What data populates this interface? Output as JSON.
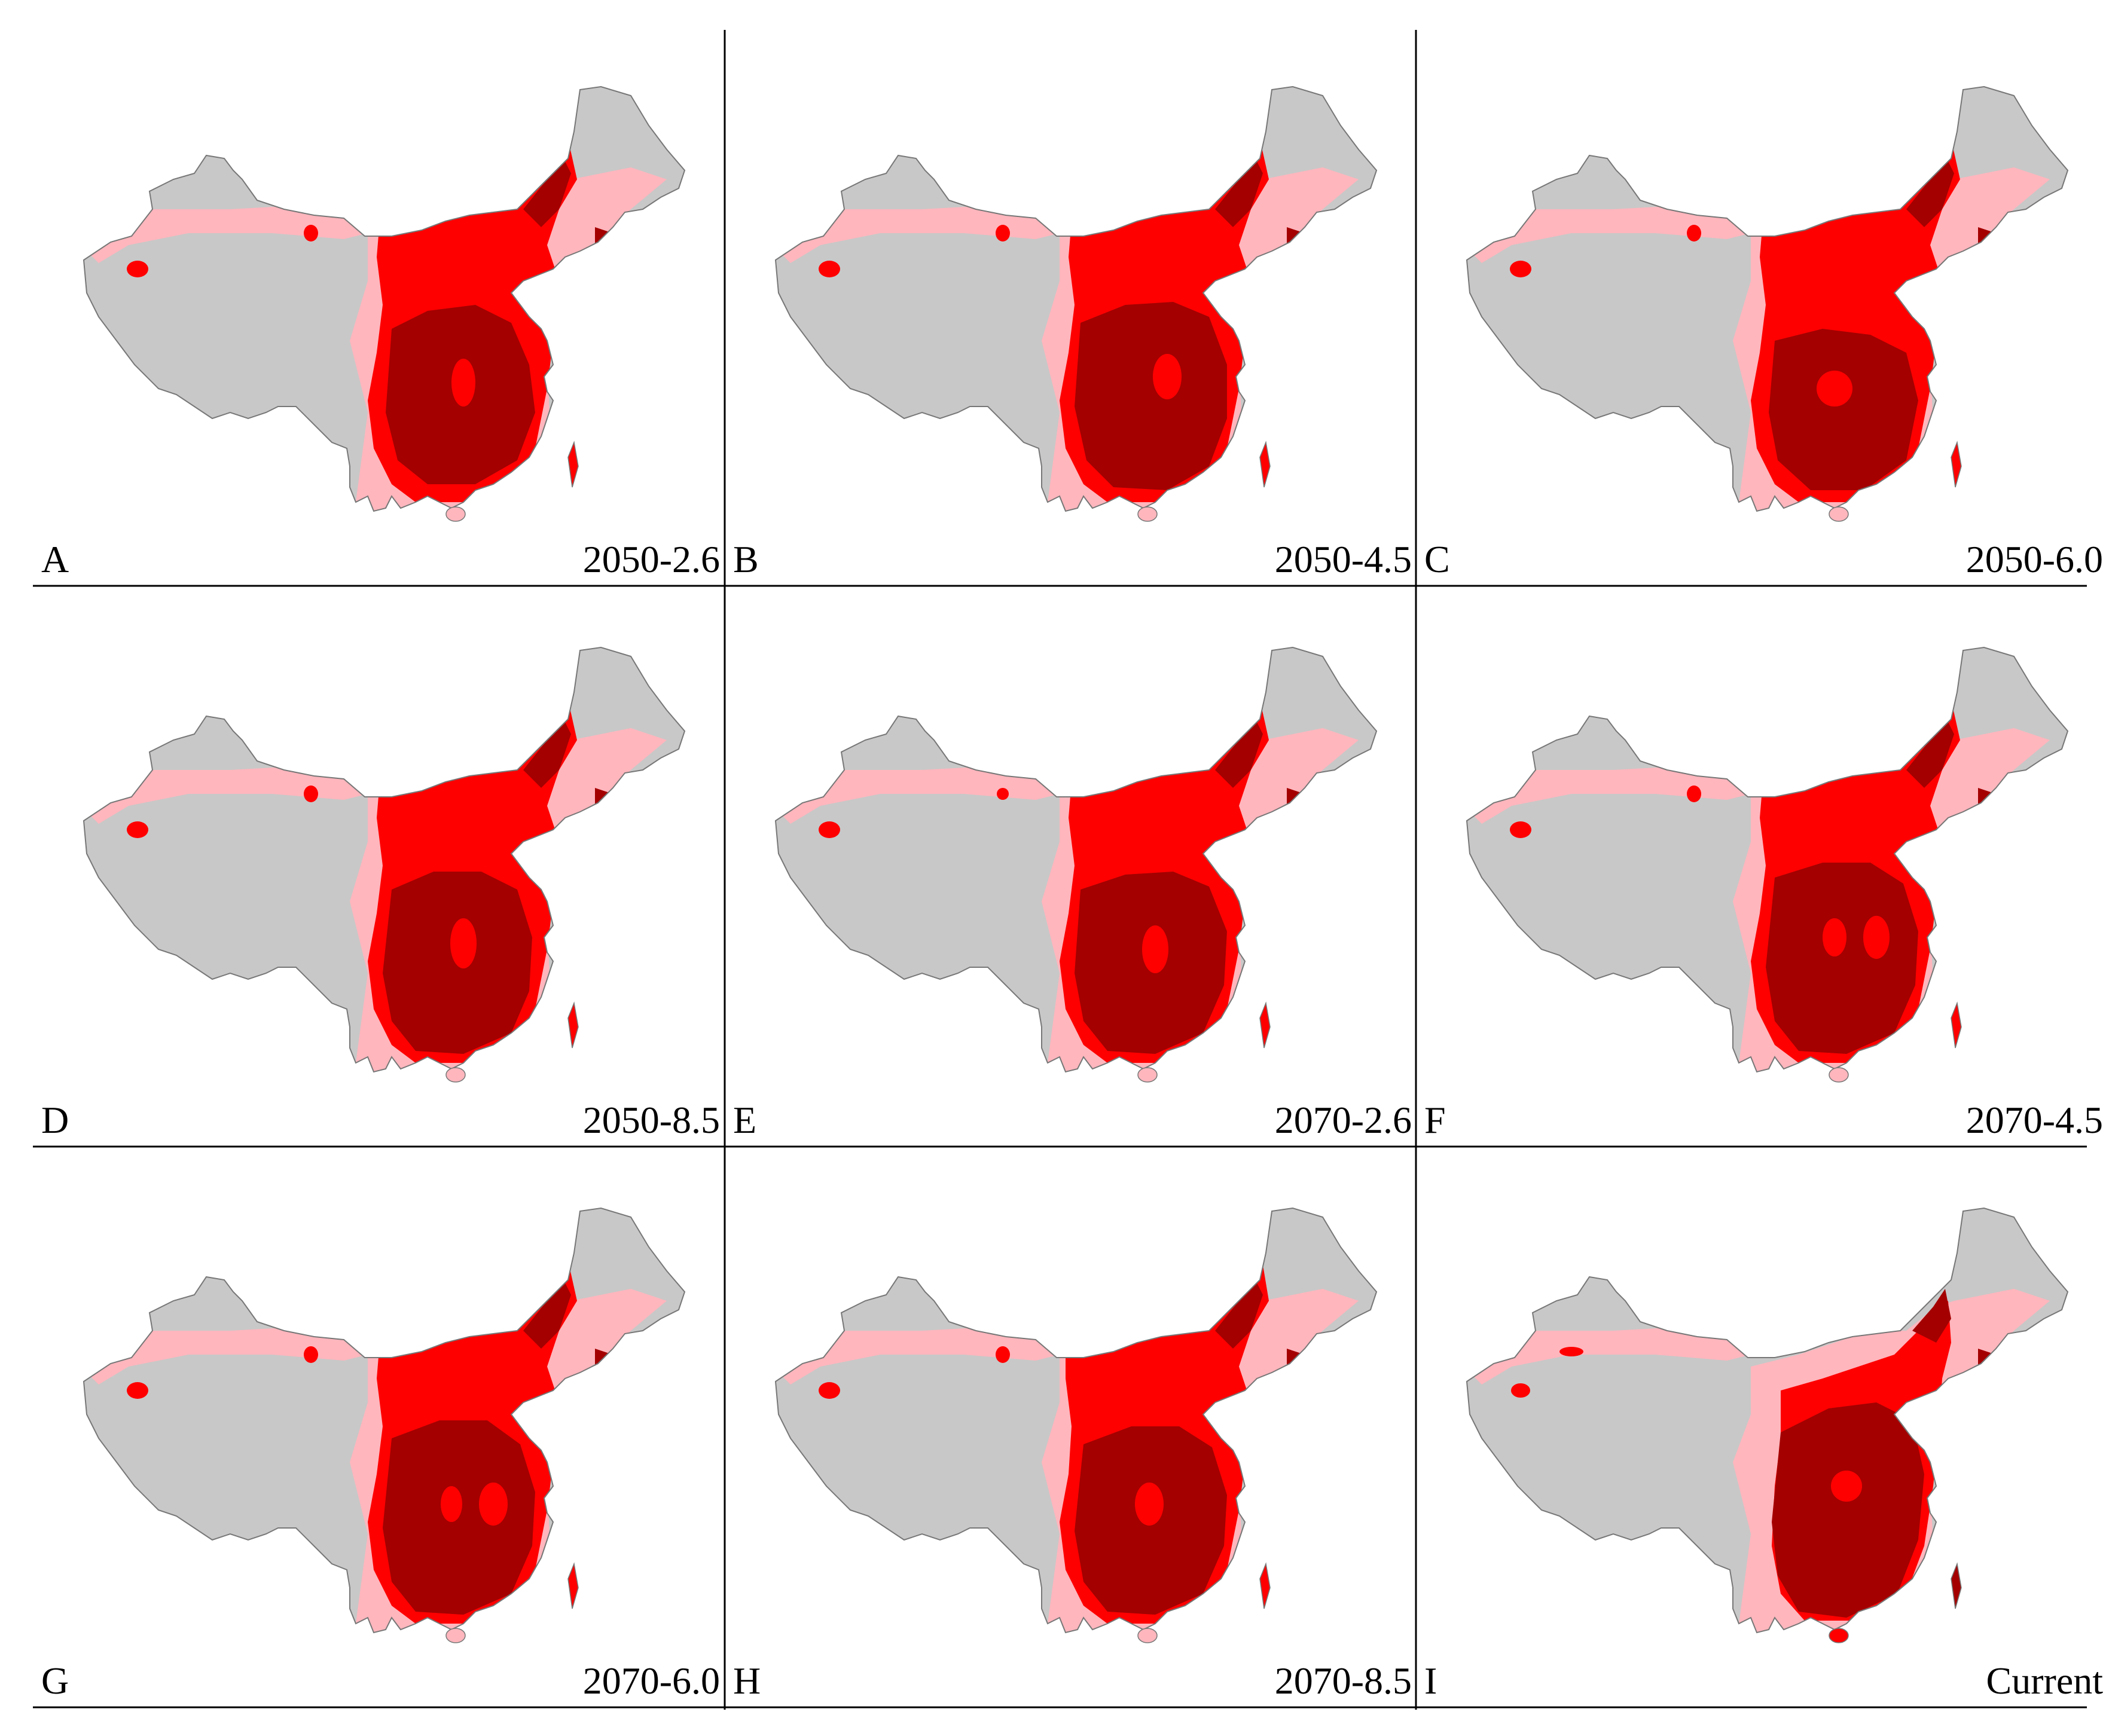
{
  "colors": {
    "background_region": "#c8c8c8",
    "low_suitability": "#ffb6bd",
    "moderate_suitability": "#ff0000",
    "high_suitability": "#a40000",
    "border": "#777777"
  },
  "panels": [
    {
      "letter": "A",
      "scenario": "2050-2.6"
    },
    {
      "letter": "B",
      "scenario": "2050-4.5"
    },
    {
      "letter": "C",
      "scenario": "2050-6.0"
    },
    {
      "letter": "D",
      "scenario": "2050-8.5"
    },
    {
      "letter": "E",
      "scenario": "2070-2.6"
    },
    {
      "letter": "F",
      "scenario": "2070-4.5"
    },
    {
      "letter": "G",
      "scenario": "2070-6.0"
    },
    {
      "letter": "H",
      "scenario": "2070-8.5"
    },
    {
      "letter": "I",
      "scenario": "Current"
    }
  ]
}
